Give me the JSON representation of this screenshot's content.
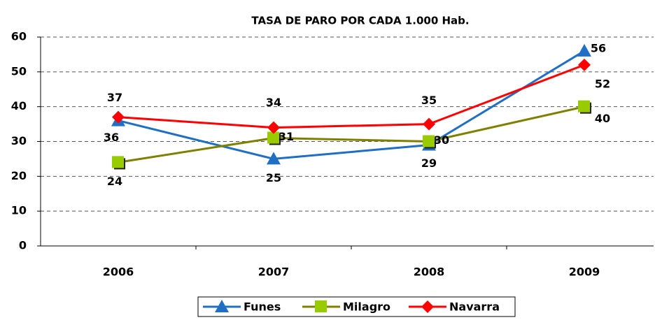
{
  "chart_data": {
    "type": "line",
    "title": "TASA DE PARO POR CADA 1.000 Hab.",
    "categories": [
      "2006",
      "2007",
      "2008",
      "2009"
    ],
    "series": [
      {
        "name": "Funes",
        "color": "#1f6fc5",
        "marker": "triangle",
        "values": [
          36,
          25,
          29,
          56
        ]
      },
      {
        "name": "Milagro",
        "color": "#808000",
        "marker_color": "#99cc00",
        "marker": "square",
        "values": [
          24,
          31,
          30,
          40
        ]
      },
      {
        "name": "Navarra",
        "color": "#ff0000",
        "marker": "diamond",
        "values": [
          37,
          34,
          35,
          52
        ]
      }
    ],
    "ylim": [
      0,
      60
    ],
    "yticks": [
      0,
      10,
      20,
      30,
      40,
      50,
      60
    ],
    "grid": true,
    "legend": "bottom"
  }
}
